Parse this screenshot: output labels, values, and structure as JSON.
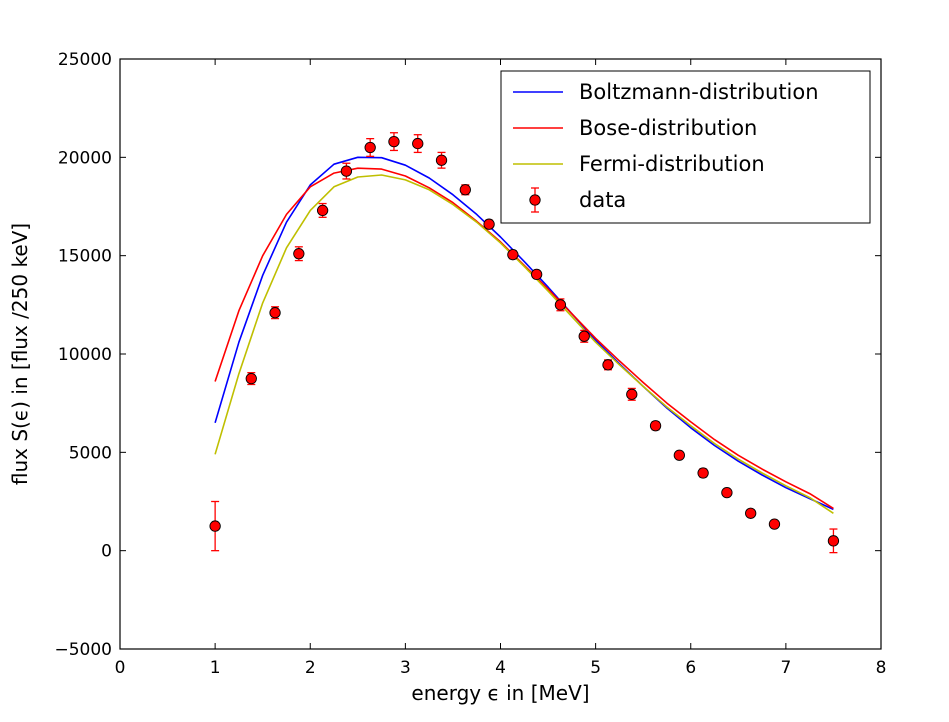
{
  "chart_data": {
    "type": "line",
    "title": "",
    "xlabel": "energy ϵ in [MeV]",
    "ylabel": "flux S(ϵ) in [flux /250 keV]",
    "xlim": [
      0,
      8
    ],
    "ylim": [
      -5000,
      25000
    ],
    "xticks": [
      "0",
      "1",
      "2",
      "3",
      "4",
      "5",
      "6",
      "7",
      "8"
    ],
    "yticks": [
      "−5000",
      "0",
      "5000",
      "10000",
      "15000",
      "20000",
      "25000"
    ],
    "grid": false,
    "legend_position": "top-right",
    "series": [
      {
        "name": "Boltzmann-distribution",
        "color": "#0000ff",
        "kind": "line",
        "x": [
          1.0,
          1.25,
          1.5,
          1.75,
          2.0,
          2.25,
          2.5,
          2.75,
          3.0,
          3.25,
          3.5,
          3.75,
          4.0,
          4.25,
          4.5,
          4.75,
          5.0,
          5.25,
          5.5,
          5.75,
          6.0,
          6.25,
          6.5,
          6.75,
          7.0,
          7.25,
          7.5
        ],
        "y": [
          6500,
          10600,
          14000,
          16700,
          18600,
          19650,
          20000,
          19980,
          19600,
          18950,
          18100,
          17100,
          15950,
          14700,
          13400,
          12050,
          10700,
          9500,
          8350,
          7250,
          6250,
          5350,
          4550,
          3850,
          3200,
          2650,
          2100
        ]
      },
      {
        "name": "Bose-distribution",
        "color": "#ff0000",
        "kind": "line",
        "x": [
          1.0,
          1.25,
          1.5,
          1.75,
          2.0,
          2.25,
          2.5,
          2.75,
          3.0,
          3.25,
          3.5,
          3.75,
          4.0,
          4.25,
          4.5,
          4.75,
          5.0,
          5.25,
          5.5,
          5.75,
          6.0,
          6.25,
          6.5,
          6.75,
          7.0,
          7.25,
          7.5
        ],
        "y": [
          8600,
          12200,
          15000,
          17100,
          18500,
          19200,
          19450,
          19400,
          19050,
          18450,
          17700,
          16750,
          15700,
          14500,
          13300,
          12050,
          10800,
          9650,
          8550,
          7500,
          6550,
          5650,
          4850,
          4150,
          3500,
          2900,
          2150
        ]
      },
      {
        "name": "Fermi-distribution",
        "color": "#bfbf00",
        "kind": "line",
        "x": [
          1.0,
          1.25,
          1.5,
          1.75,
          2.0,
          2.25,
          2.5,
          2.75,
          3.0,
          3.25,
          3.5,
          3.75,
          4.0,
          4.25,
          4.5,
          4.75,
          5.0,
          5.25,
          5.5,
          5.75,
          6.0,
          6.25,
          6.5,
          6.75,
          7.0,
          7.25,
          7.5
        ],
        "y": [
          4900,
          9000,
          12600,
          15400,
          17300,
          18500,
          19000,
          19100,
          18850,
          18350,
          17600,
          16700,
          15650,
          14450,
          13200,
          11900,
          10600,
          9450,
          8350,
          7300,
          6350,
          5450,
          4650,
          3950,
          3300,
          2700,
          1900
        ]
      },
      {
        "name": "data",
        "color": "#ff0000",
        "kind": "errorbar",
        "x": [
          1.0,
          1.38,
          1.63,
          1.88,
          2.13,
          2.38,
          2.63,
          2.88,
          3.13,
          3.38,
          3.63,
          3.88,
          4.13,
          4.38,
          4.63,
          4.88,
          5.13,
          5.38,
          5.63,
          5.88,
          6.13,
          6.38,
          6.63,
          6.88,
          7.5
        ],
        "y": [
          1250,
          8750,
          12100,
          15100,
          17300,
          19300,
          20500,
          20800,
          20700,
          19850,
          18350,
          16600,
          15050,
          14050,
          12500,
          10900,
          9450,
          7950,
          6350,
          4850,
          3950,
          2950,
          1900,
          1350,
          500
        ],
        "err": [
          1250,
          300,
          300,
          350,
          350,
          400,
          450,
          450,
          450,
          400,
          250,
          200,
          200,
          150,
          300,
          300,
          250,
          300,
          200,
          150,
          200,
          100,
          100,
          100,
          600
        ]
      }
    ]
  }
}
